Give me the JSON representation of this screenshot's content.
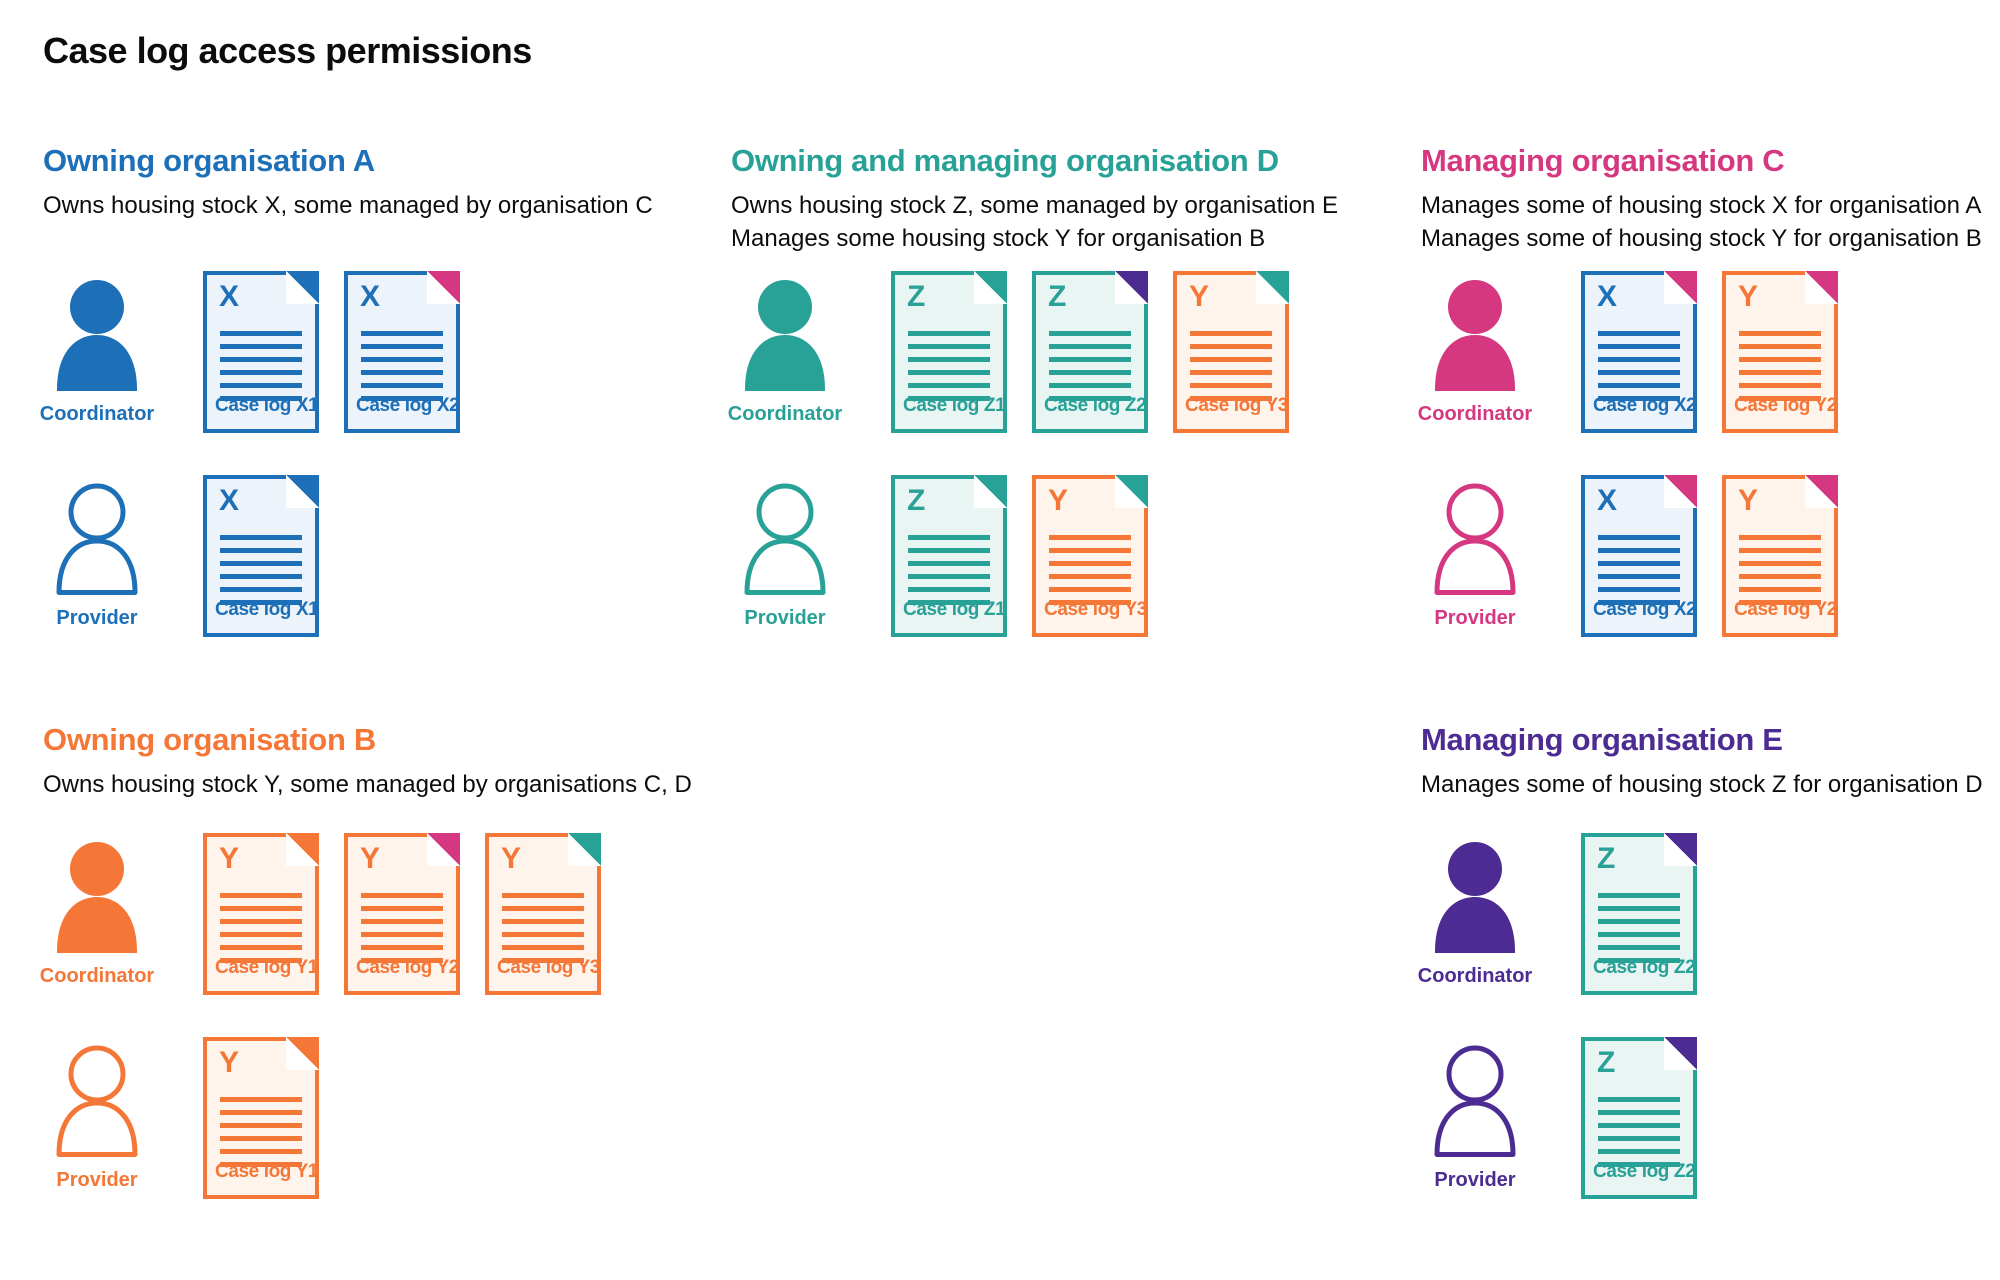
{
  "page_title": "Case log access permissions",
  "palette": {
    "blue": "#1d70b8",
    "teal": "#28a197",
    "pink": "#d53880",
    "orange": "#f47738",
    "purple": "#4c2c92",
    "text": "#0b0c0c"
  },
  "doc_fills": {
    "blue": "#ecf3fa",
    "teal": "#e9f5f3",
    "orange": "#fef4ec"
  },
  "sections": [
    {
      "id": "owning-organisation-a",
      "color": "blue",
      "title": "Owning organisation A",
      "desc": [
        "Owns housing stock X, some managed by organisation C"
      ],
      "rows": [
        {
          "role": "Coordinator",
          "person": "filled",
          "docs": [
            {
              "letter": "X",
              "label": "Case log X1",
              "doc_color": "blue",
              "fold_color": "blue"
            },
            {
              "letter": "X",
              "label": "Case log X2",
              "doc_color": "blue",
              "fold_color": "pink"
            }
          ]
        },
        {
          "role": "Provider",
          "person": "outline",
          "docs": [
            {
              "letter": "X",
              "label": "Case log X1",
              "doc_color": "blue",
              "fold_color": "blue"
            }
          ]
        }
      ]
    },
    {
      "id": "owning-and-managing-organisation-d",
      "color": "teal",
      "title": "Owning and managing organisation D",
      "desc": [
        "Owns housing stock Z, some managed by organisation E",
        "Manages some housing stock Y for organisation B"
      ],
      "rows": [
        {
          "role": "Coordinator",
          "person": "filled",
          "docs": [
            {
              "letter": "Z",
              "label": "Case log Z1",
              "doc_color": "teal",
              "fold_color": "teal"
            },
            {
              "letter": "Z",
              "label": "Case log Z2",
              "doc_color": "teal",
              "fold_color": "purple"
            },
            {
              "letter": "Y",
              "label": "Case log Y3",
              "doc_color": "orange",
              "fold_color": "teal"
            }
          ]
        },
        {
          "role": "Provider",
          "person": "outline",
          "docs": [
            {
              "letter": "Z",
              "label": "Case log Z1",
              "doc_color": "teal",
              "fold_color": "teal"
            },
            {
              "letter": "Y",
              "label": "Case log Y3",
              "doc_color": "orange",
              "fold_color": "teal"
            }
          ]
        }
      ]
    },
    {
      "id": "managing-organisation-c",
      "color": "pink",
      "title": "Managing organisation C",
      "desc": [
        "Manages some of housing stock X for organisation A",
        "Manages some of housing stock Y for organisation B"
      ],
      "rows": [
        {
          "role": "Coordinator",
          "person": "filled",
          "docs": [
            {
              "letter": "X",
              "label": "Case log X2",
              "doc_color": "blue",
              "fold_color": "pink"
            },
            {
              "letter": "Y",
              "label": "Case log Y2",
              "doc_color": "orange",
              "fold_color": "pink"
            }
          ]
        },
        {
          "role": "Provider",
          "person": "outline",
          "docs": [
            {
              "letter": "X",
              "label": "Case log X2",
              "doc_color": "blue",
              "fold_color": "pink"
            },
            {
              "letter": "Y",
              "label": "Case log Y2",
              "doc_color": "orange",
              "fold_color": "pink"
            }
          ]
        }
      ]
    },
    {
      "id": "owning-organisation-b",
      "color": "orange",
      "title": "Owning organisation B",
      "desc": [
        "Owns housing stock Y, some managed by organisations C, D"
      ],
      "rows": [
        {
          "role": "Coordinator",
          "person": "filled",
          "docs": [
            {
              "letter": "Y",
              "label": "Case log Y1",
              "doc_color": "orange",
              "fold_color": "orange"
            },
            {
              "letter": "Y",
              "label": "Case log Y2",
              "doc_color": "orange",
              "fold_color": "pink"
            },
            {
              "letter": "Y",
              "label": "Case log Y3",
              "doc_color": "orange",
              "fold_color": "teal"
            }
          ]
        },
        {
          "role": "Provider",
          "person": "outline",
          "docs": [
            {
              "letter": "Y",
              "label": "Case log Y1",
              "doc_color": "orange",
              "fold_color": "orange"
            }
          ]
        }
      ]
    },
    {
      "id": "managing-organisation-e",
      "color": "purple",
      "title": "Managing organisation E",
      "desc": [
        "Manages some of housing stock Z for organisation D"
      ],
      "rows": [
        {
          "role": "Coordinator",
          "person": "filled",
          "docs": [
            {
              "letter": "Z",
              "label": "Case log Z2",
              "doc_color": "teal",
              "fold_color": "purple"
            }
          ]
        },
        {
          "role": "Provider",
          "person": "outline",
          "docs": [
            {
              "letter": "Z",
              "label": "Case log Z2",
              "doc_color": "teal",
              "fold_color": "purple"
            }
          ]
        }
      ]
    }
  ]
}
